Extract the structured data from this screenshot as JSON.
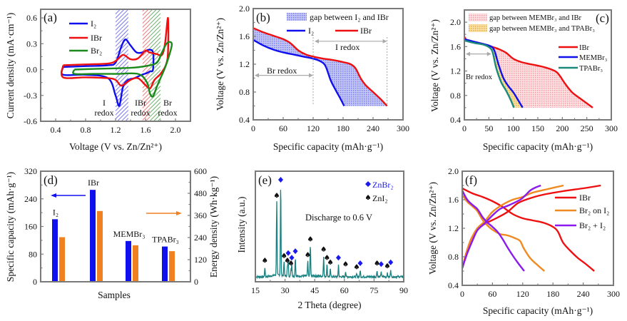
{
  "chart_data": [
    {
      "id": "a",
      "type": "line",
      "panel_label": "(a)",
      "title": "",
      "xlabel": "Voltage (V vs. Zn/Zn²⁺)",
      "ylabel": "Current density (mA·cm⁻¹)",
      "xlim": [
        0.2,
        2.2
      ],
      "ylim": [
        -0.6,
        0.7
      ],
      "xticks": [
        0.4,
        0.8,
        1.2,
        1.6,
        2.0
      ],
      "xtick_labels": [
        "0.4",
        "0.8",
        "1.2",
        "1.6",
        "2.0"
      ],
      "yticks": [
        -0.6,
        -0.3,
        0.0,
        0.3,
        0.6
      ],
      "ytick_labels": [
        "-0.6",
        "-0.3",
        "0.0",
        "0.3",
        "0.6"
      ],
      "legend": {
        "position": "top-left",
        "entries": [
          "I₂",
          "IBr",
          "Br₂"
        ]
      },
      "bands": [
        {
          "name": "I redox",
          "x": [
            1.2,
            1.37
          ],
          "color": "#2020e0",
          "label_lines": [
            "I",
            "redox"
          ]
        },
        {
          "name": "IBr redox",
          "x": [
            1.56,
            1.66
          ],
          "color": "#e02020",
          "label_lines": [
            "IBr",
            "redox"
          ]
        },
        {
          "name": "Br redox",
          "x": [
            1.66,
            1.8
          ],
          "color": "#208020",
          "label_lines": [
            "Br",
            "redox"
          ]
        }
      ],
      "series": [
        {
          "name": "I₂",
          "color": "#1010ee",
          "x": [
            0.5,
            0.8,
            1.1,
            1.2,
            1.27,
            1.33,
            1.4,
            1.48,
            1.56,
            1.64,
            1.7,
            1.7,
            1.66,
            1.62,
            1.55,
            1.45,
            1.37,
            1.3,
            1.25,
            1.2,
            1.1,
            0.8,
            0.5,
            0.5
          ],
          "y": [
            0.03,
            0.04,
            0.05,
            0.08,
            0.25,
            0.35,
            0.28,
            0.2,
            0.2,
            0.23,
            0.2,
            0.0,
            -0.02,
            -0.04,
            -0.06,
            -0.1,
            -0.12,
            -0.2,
            -0.42,
            -0.3,
            -0.1,
            -0.06,
            -0.06,
            0.03
          ]
        },
        {
          "name": "IBr",
          "color": "#ee1010",
          "x": [
            0.5,
            0.8,
            1.1,
            1.2,
            1.3,
            1.4,
            1.5,
            1.6,
            1.65,
            1.75,
            1.82,
            1.86,
            1.9,
            1.9,
            1.87,
            1.8,
            1.72,
            1.66,
            1.6,
            1.5,
            1.4,
            1.3,
            1.26,
            1.2,
            1.1,
            0.8,
            0.5,
            0.5
          ],
          "y": [
            0.05,
            0.06,
            0.07,
            0.1,
            0.17,
            0.12,
            0.13,
            0.22,
            0.2,
            0.18,
            0.17,
            0.3,
            0.6,
            0.2,
            0.05,
            -0.05,
            -0.12,
            -0.22,
            -0.18,
            -0.1,
            -0.12,
            -0.18,
            -0.18,
            -0.12,
            -0.1,
            -0.09,
            -0.09,
            0.05
          ]
        },
        {
          "name": "Br₂",
          "color": "#1a8a1a",
          "x": [
            0.65,
            1.0,
            1.4,
            1.6,
            1.75,
            1.82,
            1.88,
            1.93,
            1.95,
            1.9,
            1.85,
            1.8,
            1.75,
            1.7,
            1.66,
            1.62,
            1.5,
            1.2,
            0.9,
            0.65,
            0.65
          ],
          "y": [
            0.0,
            0.01,
            0.02,
            0.04,
            0.08,
            0.2,
            0.3,
            0.32,
            0.28,
            0.12,
            0.0,
            -0.1,
            -0.2,
            -0.31,
            -0.28,
            -0.15,
            -0.05,
            -0.05,
            -0.05,
            -0.05,
            0.0
          ]
        }
      ]
    },
    {
      "id": "b",
      "type": "line",
      "panel_label": "(b)",
      "title": "",
      "xlabel": "Specific capacity (mAh·g⁻¹)",
      "ylabel": "Voltage (V vs. Zn/Zn²⁺)",
      "xlim": [
        0,
        300
      ],
      "ylim": [
        0.4,
        2.0
      ],
      "xticks": [
        0,
        60,
        120,
        180,
        240,
        300
      ],
      "xtick_labels": [
        "0",
        "60",
        "120",
        "180",
        "240",
        "300"
      ],
      "yticks": [
        0.4,
        0.8,
        1.2,
        1.6,
        2.0
      ],
      "ytick_labels": [
        "0.4",
        "0.8",
        "1.2",
        "1.6",
        "2.0"
      ],
      "legend": {
        "position": "top-right",
        "entries": [
          "gap between I₂ and IBr",
          "I₂",
          "IBr"
        ]
      },
      "fill": {
        "name": "gap between I₂ and IBr",
        "color": "#8a8ff0"
      },
      "annotations": [
        {
          "text": "Br redox",
          "x_range": [
            0,
            120
          ],
          "y": 1.04
        },
        {
          "text": "I redox",
          "x_range": [
            120,
            268
          ],
          "y": 1.53
        }
      ],
      "series": [
        {
          "name": "I₂",
          "color": "#1010ee",
          "x": [
            0,
            20,
            40,
            60,
            80,
            100,
            120,
            135,
            145,
            155,
            165,
            175,
            182
          ],
          "y": [
            1.55,
            1.47,
            1.41,
            1.37,
            1.34,
            1.31,
            1.28,
            1.24,
            1.17,
            0.97,
            0.83,
            0.7,
            0.6
          ]
        },
        {
          "name": "IBr",
          "color": "#ee1010",
          "x": [
            0,
            20,
            40,
            60,
            75,
            90,
            105,
            120,
            140,
            160,
            180,
            195,
            205,
            215,
            225,
            240,
            255,
            268
          ],
          "y": [
            1.72,
            1.66,
            1.61,
            1.56,
            1.5,
            1.4,
            1.34,
            1.31,
            1.28,
            1.26,
            1.23,
            1.2,
            1.14,
            1.0,
            0.9,
            0.8,
            0.7,
            0.6
          ]
        }
      ]
    },
    {
      "id": "c",
      "type": "line",
      "panel_label": "(c)",
      "title": "",
      "xlabel": "Specific capacity (mAh·g⁻¹)",
      "ylabel": "Voltage (V vs. Zn/Zn²⁺)",
      "xlim": [
        0,
        300
      ],
      "ylim": [
        0.4,
        2.2
      ],
      "xticks": [
        0,
        50,
        100,
        150,
        200,
        250,
        300
      ],
      "xtick_labels": [
        "0",
        "50",
        "100",
        "150",
        "200",
        "250",
        "300"
      ],
      "yticks": [
        0.4,
        0.8,
        1.2,
        1.6,
        2.0
      ],
      "ytick_labels": [
        "0.4",
        "0.8",
        "1.2",
        "1.6",
        "2.0"
      ],
      "legend": {
        "position": "top",
        "entries": [
          "gap between MEMBr₃ and IBr",
          "gap between MEMBr₃ and  TPABr₃",
          "IBr",
          "MEMBr₃",
          "TPABr₃"
        ]
      },
      "fills": [
        {
          "name": "gap between MEMBr₃ and IBr",
          "color": "#f5a0a8"
        },
        {
          "name": "gap between MEMBr₃ and TPABr₃",
          "color": "#f0c060"
        }
      ],
      "annotations": [
        {
          "text": "Br redox",
          "x_range": [
            0,
            55
          ],
          "y": 1.48
        }
      ],
      "series": [
        {
          "name": "IBr",
          "color": "#ee1010",
          "x": [
            0,
            5,
            20,
            40,
            55,
            70,
            85,
            100,
            115,
            130,
            160,
            185,
            195,
            205,
            220,
            240,
            262
          ],
          "y": [
            1.76,
            1.71,
            1.68,
            1.64,
            1.6,
            1.56,
            1.5,
            1.4,
            1.35,
            1.32,
            1.27,
            1.2,
            1.12,
            1.0,
            0.85,
            0.73,
            0.6
          ]
        },
        {
          "name": "MEMBr₃",
          "color": "#1010ee",
          "x": [
            0,
            20,
            40,
            55,
            62,
            70,
            80,
            90,
            100,
            110,
            119
          ],
          "y": [
            1.72,
            1.68,
            1.64,
            1.6,
            1.52,
            1.3,
            1.08,
            0.95,
            0.85,
            0.72,
            0.6
          ]
        },
        {
          "name": "TPABr₃",
          "color": "#1a8a7a",
          "x": [
            0,
            20,
            40,
            52,
            58,
            65,
            75,
            85,
            95,
            101
          ],
          "y": [
            1.7,
            1.66,
            1.63,
            1.58,
            1.5,
            1.25,
            1.02,
            0.88,
            0.72,
            0.6
          ]
        }
      ]
    },
    {
      "id": "d",
      "type": "bar",
      "panel_label": "(d)",
      "title": "",
      "xlabel": "Samples",
      "ylabel": "Specific capacity (mAh·g⁻¹)",
      "ylabel_right": "Energy density (Wh·kg⁻¹)",
      "categories": [
        "I₂",
        "IBr",
        "MEMBr₃",
        "TPABr₃"
      ],
      "ylim": [
        0,
        320
      ],
      "ylim_right": [
        0,
        600
      ],
      "yticks": [
        0,
        80,
        160,
        240,
        320
      ],
      "ytick_labels": [
        "0",
        "80",
        "160",
        "240",
        "320"
      ],
      "yticks_right": [
        0,
        120,
        240,
        360,
        480,
        600
      ],
      "ytick_labels_right": [
        "0",
        "120",
        "240",
        "360",
        "480",
        "600"
      ],
      "series": [
        {
          "name": "Specific capacity",
          "axis": "left",
          "color": "#1010ee",
          "values": [
            181,
            266,
            118,
            102
          ]
        },
        {
          "name": "Energy density",
          "axis": "right",
          "color": "#f08020",
          "values": [
            242,
            384,
            198,
            166
          ]
        }
      ]
    },
    {
      "id": "e",
      "type": "line",
      "panel_label": "(e)",
      "title": "",
      "xlabel": "2 Theta (degree)",
      "ylabel": "Intensity (a.u.)",
      "xlim": [
        15,
        90
      ],
      "xticks": [
        15,
        30,
        45,
        60,
        75,
        90
      ],
      "xtick_labels": [
        "15",
        "30",
        "45",
        "60",
        "75",
        "90"
      ],
      "annotation_text": "Discharge  to 0.6 V",
      "legend": {
        "position": "top-right",
        "entries": [
          "ZnBr₂",
          "ZnI₂"
        ]
      },
      "trace_color": "#1a8080",
      "peaks": [
        {
          "x": 19.8,
          "h": 0.1,
          "phase": "ZnI₂"
        },
        {
          "x": 25.8,
          "h": 0.8,
          "phase": "ZnI₂"
        },
        {
          "x": 27.8,
          "h": 0.97,
          "phase": "ZnBr₂"
        },
        {
          "x": 29.5,
          "h": 0.15,
          "phase": "ZnI₂"
        },
        {
          "x": 31.2,
          "h": 0.1,
          "phase": "ZnI₂"
        },
        {
          "x": 31.6,
          "h": 0.18,
          "phase": "ZnBr₂"
        },
        {
          "x": 33.0,
          "h": 0.07,
          "phase": "ZnI₂"
        },
        {
          "x": 33.4,
          "h": 0.13,
          "phase": "ZnBr₂"
        },
        {
          "x": 35.2,
          "h": 0.2,
          "phase": "ZnBr₂"
        },
        {
          "x": 41.5,
          "h": 0.16,
          "phase": "ZnI₂"
        },
        {
          "x": 42.8,
          "h": 0.33,
          "phase": "ZnI₂"
        },
        {
          "x": 49.5,
          "h": 0.22,
          "phase": "ZnI₂"
        },
        {
          "x": 51.2,
          "h": 0.13,
          "phase": "ZnI₂"
        },
        {
          "x": 52.9,
          "h": 0.08,
          "phase": "ZnI₂"
        },
        {
          "x": 57.0,
          "h": 0.13,
          "phase": "ZnBr₂"
        },
        {
          "x": 60.6,
          "h": 0.06,
          "phase": "ZnI₂"
        },
        {
          "x": 66.2,
          "h": 0.03,
          "phase": "ZnI₂"
        },
        {
          "x": 68.0,
          "h": 0.07,
          "phase": "ZnBr₂"
        },
        {
          "x": 76.5,
          "h": 0.07,
          "phase": "ZnI₂"
        },
        {
          "x": 78.6,
          "h": 0.06,
          "phase": "ZnBr₂"
        },
        {
          "x": 81.7,
          "h": 0.04,
          "phase": "ZnI₂"
        },
        {
          "x": 83.4,
          "h": 0.08,
          "phase": "ZnBr₂"
        }
      ]
    },
    {
      "id": "f",
      "type": "line",
      "panel_label": "(f)",
      "title": "",
      "xlabel": "Specific capacity (mAh·g⁻¹)",
      "ylabel": "Voltage (V vs. Zn/Zn²⁺)",
      "xlim": [
        0,
        300
      ],
      "ylim": [
        0.4,
        2.0
      ],
      "xticks": [
        0,
        60,
        120,
        180,
        240,
        300
      ],
      "xtick_labels": [
        "0",
        "60",
        "120",
        "180",
        "240",
        "300"
      ],
      "yticks": [
        0.4,
        0.8,
        1.2,
        1.6,
        2.0
      ],
      "ytick_labels": [
        "0.4",
        "0.8",
        "1.2",
        "1.6",
        "2.0"
      ],
      "legend": {
        "position": "right",
        "entries": [
          "IBr",
          "Br₂ on I₂",
          "Br₂ + I₂"
        ]
      },
      "series": [
        {
          "name": "IBr (discharge)",
          "legend": "IBr",
          "color": "#ee1010",
          "x": [
            0,
            20,
            40,
            60,
            80,
            100,
            120,
            140,
            160,
            180,
            190,
            200,
            215,
            230,
            245,
            262
          ],
          "y": [
            1.76,
            1.69,
            1.64,
            1.58,
            1.5,
            1.4,
            1.34,
            1.31,
            1.28,
            1.22,
            1.15,
            1.0,
            0.88,
            0.78,
            0.7,
            0.6
          ]
        },
        {
          "name": "IBr (charge)",
          "legend": "IBr",
          "color": "#ee1010",
          "x": [
            0,
            10,
            20,
            35,
            50,
            70,
            90,
            110,
            130,
            160,
            200,
            240,
            275
          ],
          "y": [
            0.64,
            0.9,
            1.08,
            1.22,
            1.28,
            1.35,
            1.43,
            1.55,
            1.61,
            1.67,
            1.72,
            1.76,
            1.8
          ]
        },
        {
          "name": "Br₂ on I₂ (discharge)",
          "legend": "Br₂ on I₂",
          "color": "#f08a20",
          "x": [
            0,
            10,
            20,
            30,
            40,
            50,
            60,
            75,
            90,
            105,
            115,
            122,
            135,
            150,
            163
          ],
          "y": [
            1.67,
            1.57,
            1.51,
            1.44,
            1.32,
            1.24,
            1.18,
            1.12,
            1.1,
            1.06,
            1.02,
            0.92,
            0.78,
            0.68,
            0.6
          ]
        },
        {
          "name": "Br₂ on I₂ (charge)",
          "legend": "Br₂ on I₂",
          "color": "#f08a20",
          "x": [
            0,
            10,
            20,
            30,
            45,
            60,
            80,
            100,
            120,
            140,
            170,
            201
          ],
          "y": [
            0.64,
            0.9,
            1.08,
            1.2,
            1.3,
            1.43,
            1.53,
            1.6,
            1.64,
            1.7,
            1.75,
            1.8
          ]
        },
        {
          "name": "Br₂ + I₂ (discharge)",
          "legend": "Br₂ + I₂",
          "color": "#8a1aee",
          "x": [
            0,
            10,
            20,
            30,
            40,
            50,
            60,
            70,
            80,
            90,
            100,
            110,
            123
          ],
          "y": [
            1.73,
            1.6,
            1.53,
            1.47,
            1.36,
            1.28,
            1.22,
            1.15,
            1.05,
            0.93,
            0.82,
            0.72,
            0.6
          ]
        },
        {
          "name": "Br₂ + I₂ (charge)",
          "legend": "Br₂ + I₂",
          "color": "#8a1aee",
          "x": [
            0,
            10,
            20,
            30,
            45,
            60,
            75,
            95,
            115,
            125,
            135,
            145,
            156
          ],
          "y": [
            0.64,
            0.85,
            1.02,
            1.17,
            1.27,
            1.38,
            1.47,
            1.53,
            1.6,
            1.66,
            1.73,
            1.77,
            1.8
          ]
        }
      ]
    }
  ]
}
